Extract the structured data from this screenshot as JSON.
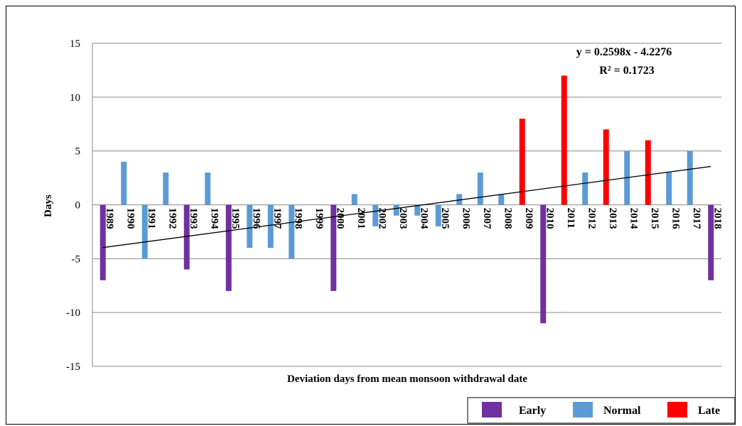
{
  "chart_data": {
    "type": "bar",
    "xlabel": "Deviation days from mean monsoon withdrawal date",
    "ylabel": "Days",
    "ylim": [
      -15,
      15
    ],
    "yticks": [
      15,
      10,
      5,
      0,
      -5,
      -10,
      -15
    ],
    "grid": true,
    "categories": [
      "1989",
      "1990",
      "1991",
      "1992",
      "1993",
      "1994",
      "1995",
      "1996",
      "1997",
      "1998",
      "1999",
      "2000",
      "2001",
      "2002",
      "2003",
      "2004",
      "2005",
      "2006",
      "2007",
      "2008",
      "2009",
      "2010",
      "2011",
      "2012",
      "2013",
      "2014",
      "2015",
      "2016",
      "2017",
      "2018"
    ],
    "values": [
      -7,
      4,
      -5,
      3,
      -6,
      3,
      -8,
      -4,
      -4,
      -5,
      0,
      -8,
      1,
      -2,
      -1,
      -1,
      -2,
      1,
      3,
      1,
      8,
      -11,
      12,
      3,
      7,
      5,
      6,
      3,
      5,
      -7
    ],
    "classes": [
      "Early",
      "Normal",
      "Normal",
      "Normal",
      "Early",
      "Normal",
      "Early",
      "Normal",
      "Normal",
      "Normal",
      "Normal",
      "Early",
      "Normal",
      "Normal",
      "Normal",
      "Normal",
      "Normal",
      "Normal",
      "Normal",
      "Normal",
      "Late",
      "Early",
      "Late",
      "Normal",
      "Late",
      "Normal",
      "Late",
      "Normal",
      "Normal",
      "Early"
    ],
    "legend": {
      "placement": "bottom-right",
      "entries": [
        {
          "name": "Early",
          "color": "#7030a0"
        },
        {
          "name": "Normal",
          "color": "#5b9bd5"
        },
        {
          "name": "Late",
          "color": "#ff0000"
        }
      ]
    },
    "trendline": {
      "slope": 0.2598,
      "intercept": -4.2276,
      "equation": "y = 0.2598x - 4.2276",
      "r_squared": "R² = 0.1723"
    }
  }
}
